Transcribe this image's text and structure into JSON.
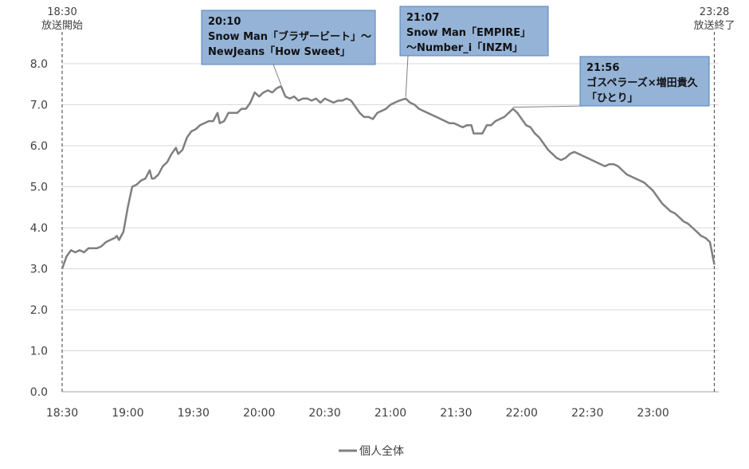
{
  "chart_data": {
    "type": "line",
    "ylim": [
      0,
      8.0
    ],
    "yticks": [
      "0.0",
      "1.0",
      "2.0",
      "3.0",
      "4.0",
      "5.0",
      "6.0",
      "7.0",
      "8.0"
    ],
    "xticks": [
      "18:30",
      "19:00",
      "19:30",
      "20:00",
      "20:30",
      "21:00",
      "21:30",
      "22:00",
      "22:30",
      "23:00"
    ],
    "grid": true,
    "legend_position": "bottom",
    "colors": {
      "line": "#7f7f7f",
      "grid": "#d9d9d9",
      "annotation_box": "#95b3d7",
      "annotation_border": "#4f81bd"
    },
    "start_marker": {
      "time": "18:30",
      "label": "放送開始"
    },
    "end_marker": {
      "time": "23:28",
      "label": "放送終了"
    },
    "annotations": [
      {
        "time": "20:10",
        "lines": [
          "20:10",
          "Snow Man「ブラザービート」～",
          "NewJeans「How Sweet」"
        ]
      },
      {
        "time": "21:07",
        "lines": [
          "21:07",
          "Snow Man「EMPIRE」",
          "～Number_i「INZM」"
        ]
      },
      {
        "time": "21:56",
        "lines": [
          "21:56",
          "ゴスペラーズ×増田貴久",
          "「ひとり」"
        ]
      }
    ],
    "series": [
      {
        "name": "個人全体",
        "points": [
          [
            "18:30",
            3.0
          ],
          [
            "18:32",
            3.3
          ],
          [
            "18:34",
            3.45
          ],
          [
            "18:36",
            3.4
          ],
          [
            "18:38",
            3.45
          ],
          [
            "18:40",
            3.4
          ],
          [
            "18:42",
            3.5
          ],
          [
            "18:44",
            3.5
          ],
          [
            "18:46",
            3.5
          ],
          [
            "18:48",
            3.55
          ],
          [
            "18:50",
            3.65
          ],
          [
            "18:52",
            3.7
          ],
          [
            "18:54",
            3.75
          ],
          [
            "18:55",
            3.8
          ],
          [
            "18:56",
            3.7
          ],
          [
            "18:58",
            3.9
          ],
          [
            "19:00",
            4.5
          ],
          [
            "19:02",
            5.0
          ],
          [
            "19:04",
            5.05
          ],
          [
            "19:06",
            5.15
          ],
          [
            "19:08",
            5.2
          ],
          [
            "19:10",
            5.4
          ],
          [
            "19:11",
            5.2
          ],
          [
            "19:12",
            5.2
          ],
          [
            "19:14",
            5.3
          ],
          [
            "19:16",
            5.5
          ],
          [
            "19:18",
            5.6
          ],
          [
            "19:20",
            5.8
          ],
          [
            "19:22",
            5.95
          ],
          [
            "19:23",
            5.8
          ],
          [
            "19:25",
            5.9
          ],
          [
            "19:27",
            6.2
          ],
          [
            "19:29",
            6.35
          ],
          [
            "19:31",
            6.4
          ],
          [
            "19:33",
            6.5
          ],
          [
            "19:35",
            6.55
          ],
          [
            "19:37",
            6.6
          ],
          [
            "19:39",
            6.6
          ],
          [
            "19:41",
            6.8
          ],
          [
            "19:42",
            6.55
          ],
          [
            "19:44",
            6.6
          ],
          [
            "19:46",
            6.8
          ],
          [
            "19:48",
            6.8
          ],
          [
            "19:50",
            6.8
          ],
          [
            "19:52",
            6.9
          ],
          [
            "19:54",
            6.9
          ],
          [
            "19:56",
            7.05
          ],
          [
            "19:58",
            7.3
          ],
          [
            "20:00",
            7.2
          ],
          [
            "20:02",
            7.3
          ],
          [
            "20:04",
            7.35
          ],
          [
            "20:06",
            7.3
          ],
          [
            "20:08",
            7.4
          ],
          [
            "20:10",
            7.45
          ],
          [
            "20:12",
            7.2
          ],
          [
            "20:14",
            7.15
          ],
          [
            "20:16",
            7.2
          ],
          [
            "20:18",
            7.1
          ],
          [
            "20:20",
            7.15
          ],
          [
            "20:22",
            7.15
          ],
          [
            "20:24",
            7.1
          ],
          [
            "20:26",
            7.15
          ],
          [
            "20:28",
            7.05
          ],
          [
            "20:30",
            7.15
          ],
          [
            "20:32",
            7.1
          ],
          [
            "20:34",
            7.05
          ],
          [
            "20:36",
            7.1
          ],
          [
            "20:38",
            7.1
          ],
          [
            "20:40",
            7.15
          ],
          [
            "20:42",
            7.1
          ],
          [
            "20:44",
            6.95
          ],
          [
            "20:46",
            6.8
          ],
          [
            "20:48",
            6.7
          ],
          [
            "20:50",
            6.7
          ],
          [
            "20:52",
            6.65
          ],
          [
            "20:54",
            6.8
          ],
          [
            "20:56",
            6.85
          ],
          [
            "20:58",
            6.9
          ],
          [
            "21:00",
            7.0
          ],
          [
            "21:02",
            7.05
          ],
          [
            "21:04",
            7.1
          ],
          [
            "21:07",
            7.15
          ],
          [
            "21:09",
            7.05
          ],
          [
            "21:11",
            7.0
          ],
          [
            "21:13",
            6.9
          ],
          [
            "21:15",
            6.85
          ],
          [
            "21:17",
            6.8
          ],
          [
            "21:19",
            6.75
          ],
          [
            "21:21",
            6.7
          ],
          [
            "21:23",
            6.65
          ],
          [
            "21:25",
            6.6
          ],
          [
            "21:27",
            6.55
          ],
          [
            "21:29",
            6.55
          ],
          [
            "21:31",
            6.5
          ],
          [
            "21:33",
            6.45
          ],
          [
            "21:35",
            6.5
          ],
          [
            "21:37",
            6.5
          ],
          [
            "21:38",
            6.3
          ],
          [
            "21:40",
            6.3
          ],
          [
            "21:42",
            6.3
          ],
          [
            "21:44",
            6.5
          ],
          [
            "21:46",
            6.5
          ],
          [
            "21:48",
            6.6
          ],
          [
            "21:50",
            6.65
          ],
          [
            "21:52",
            6.7
          ],
          [
            "21:54",
            6.8
          ],
          [
            "21:56",
            6.9
          ],
          [
            "21:58",
            6.8
          ],
          [
            "22:00",
            6.65
          ],
          [
            "22:02",
            6.5
          ],
          [
            "22:04",
            6.45
          ],
          [
            "22:06",
            6.3
          ],
          [
            "22:08",
            6.2
          ],
          [
            "22:10",
            6.05
          ],
          [
            "22:12",
            5.9
          ],
          [
            "22:14",
            5.8
          ],
          [
            "22:16",
            5.7
          ],
          [
            "22:18",
            5.65
          ],
          [
            "22:20",
            5.7
          ],
          [
            "22:22",
            5.8
          ],
          [
            "22:24",
            5.85
          ],
          [
            "22:26",
            5.8
          ],
          [
            "22:28",
            5.75
          ],
          [
            "22:30",
            5.7
          ],
          [
            "22:32",
            5.65
          ],
          [
            "22:34",
            5.6
          ],
          [
            "22:36",
            5.55
          ],
          [
            "22:38",
            5.5
          ],
          [
            "22:40",
            5.55
          ],
          [
            "22:42",
            5.55
          ],
          [
            "22:44",
            5.5
          ],
          [
            "22:46",
            5.4
          ],
          [
            "22:48",
            5.3
          ],
          [
            "22:50",
            5.25
          ],
          [
            "22:52",
            5.2
          ],
          [
            "22:54",
            5.15
          ],
          [
            "22:56",
            5.1
          ],
          [
            "22:58",
            5.0
          ],
          [
            "23:00",
            4.9
          ],
          [
            "23:02",
            4.75
          ],
          [
            "23:04",
            4.6
          ],
          [
            "23:06",
            4.5
          ],
          [
            "23:08",
            4.4
          ],
          [
            "23:10",
            4.35
          ],
          [
            "23:12",
            4.25
          ],
          [
            "23:14",
            4.15
          ],
          [
            "23:16",
            4.1
          ],
          [
            "23:18",
            4.0
          ],
          [
            "23:20",
            3.9
          ],
          [
            "23:22",
            3.8
          ],
          [
            "23:24",
            3.75
          ],
          [
            "23:26",
            3.65
          ],
          [
            "23:28",
            3.1
          ]
        ]
      }
    ]
  }
}
